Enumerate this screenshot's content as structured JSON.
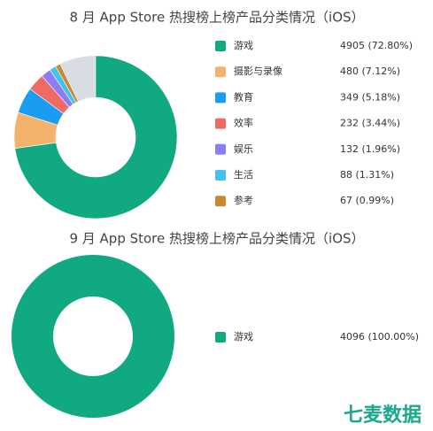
{
  "chart_data": [
    {
      "type": "pie",
      "title": "8 月 App Store 热搜榜上榜产品分类情况（iOS）",
      "categories": [
        "游戏",
        "摄影与录像",
        "教育",
        "效率",
        "娱乐",
        "生活",
        "参考"
      ],
      "values": [
        72.8,
        7.12,
        5.18,
        3.44,
        1.96,
        1.31,
        0.99
      ],
      "value_labels": [
        "4905 (72.80%)",
        "480 (7.12%)",
        "349 (5.18%)",
        "232 (3.44%)",
        "132 (1.96%)",
        "88 (1.31%)",
        "67 (0.99%)"
      ],
      "colors": [
        "#10a981",
        "#f4b36c",
        "#1a9df0",
        "#ef6b62",
        "#8c7ef2",
        "#43c1ef",
        "#c78a2c"
      ]
    },
    {
      "type": "pie",
      "title": "9 月 App Store 热搜榜上榜产品分类情况（iOS）",
      "categories": [
        "游戏"
      ],
      "values": [
        100.0
      ],
      "value_labels": [
        "4096 (100.00%)"
      ],
      "colors": [
        "#10a981"
      ]
    }
  ],
  "logo": "七麦数据"
}
